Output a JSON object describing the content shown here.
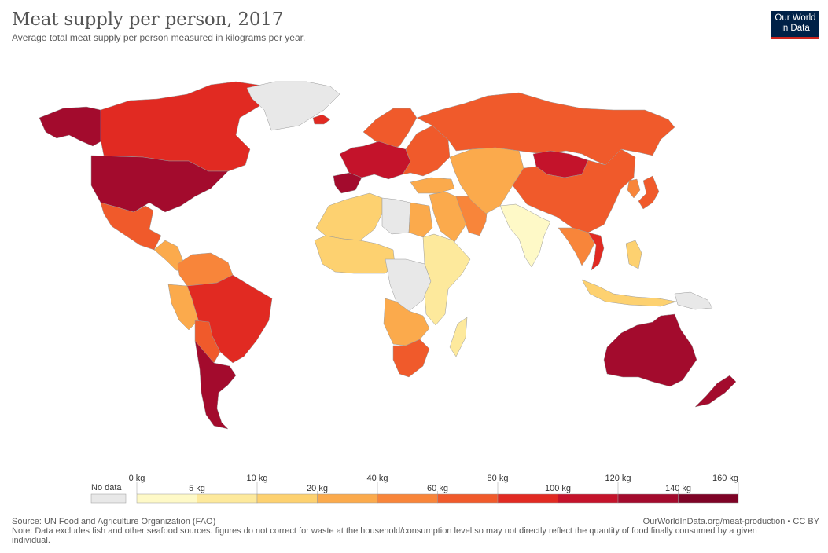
{
  "header": {
    "title": "Meat supply per person, 2017",
    "subtitle": "Average total meat supply per person measured in kilograms per year.",
    "logo_line1": "Our World",
    "logo_line2": "in Data"
  },
  "legend": {
    "no_data_label": "No data",
    "no_data_color": "#e8e8e8",
    "bins": [
      {
        "from": "0 kg",
        "to": "5 kg",
        "color": "#fef9c7"
      },
      {
        "from": "5 kg",
        "to": "10 kg",
        "color": "#fde99c"
      },
      {
        "from": "10 kg",
        "to": "20 kg",
        "color": "#fdd170"
      },
      {
        "from": "20 kg",
        "to": "40 kg",
        "color": "#fbaa4c"
      },
      {
        "from": "40 kg",
        "to": "60 kg",
        "color": "#f8853a"
      },
      {
        "from": "60 kg",
        "to": "80 kg",
        "color": "#f05a2b"
      },
      {
        "from": "80 kg",
        "to": "100 kg",
        "color": "#e12a22"
      },
      {
        "from": "100 kg",
        "to": "120 kg",
        "color": "#c4132b"
      },
      {
        "from": "120 kg",
        "to": "140 kg",
        "color": "#a30b2d"
      },
      {
        "from": "140 kg",
        "to": "160 kg",
        "color": "#7e0326"
      }
    ],
    "tick_labels": [
      "0 kg",
      "5 kg",
      "10 kg",
      "20 kg",
      "40 kg",
      "60 kg",
      "80 kg",
      "100 kg",
      "120 kg",
      "140 kg",
      "160 kg"
    ]
  },
  "footer": {
    "source": "Source: UN Food and Agriculture Organization (FAO)",
    "note": "Note: Data excludes fish and other seafood sources. figures do not correct for waste at the household/consumption level so may not directly reflect the quantity of food finally consumed by a given individual.",
    "url_license": "OurWorldInData.org/meat-production • CC BY"
  },
  "regions": [
    {
      "name": "Alaska",
      "color": "#a30b2d"
    },
    {
      "name": "Canada",
      "color": "#e12a22"
    },
    {
      "name": "Greenland",
      "color": "#e8e8e8"
    },
    {
      "name": "United States",
      "color": "#a30b2d"
    },
    {
      "name": "Mexico",
      "color": "#f05a2b"
    },
    {
      "name": "Central America",
      "color": "#fbaa4c"
    },
    {
      "name": "Colombia & Venezuela",
      "color": "#f8853a"
    },
    {
      "name": "Peru",
      "color": "#fbaa4c"
    },
    {
      "name": "Brazil",
      "color": "#e12a22"
    },
    {
      "name": "Bolivia & Paraguay",
      "color": "#f05a2b"
    },
    {
      "name": "Argentina & Chile",
      "color": "#a30b2d"
    },
    {
      "name": "Iceland",
      "color": "#e12a22"
    },
    {
      "name": "Scandinavia",
      "color": "#f05a2b"
    },
    {
      "name": "Western Europe",
      "color": "#c4132b"
    },
    {
      "name": "Iberia",
      "color": "#a30b2d"
    },
    {
      "name": "Eastern Europe",
      "color": "#f05a2b"
    },
    {
      "name": "Russia",
      "color": "#f05a2b"
    },
    {
      "name": "Turkey",
      "color": "#fbaa4c"
    },
    {
      "name": "Middle East",
      "color": "#fbaa4c"
    },
    {
      "name": "Gulf states",
      "color": "#f8853a"
    },
    {
      "name": "Central Asia",
      "color": "#fbaa4c"
    },
    {
      "name": "Mongolia",
      "color": "#c4132b"
    },
    {
      "name": "China",
      "color": "#f05a2b"
    },
    {
      "name": "Korea",
      "color": "#f8853a"
    },
    {
      "name": "Japan",
      "color": "#f05a2b"
    },
    {
      "name": "India",
      "color": "#fef9c7"
    },
    {
      "name": "Southeast Asia",
      "color": "#f8853a"
    },
    {
      "name": "Vietnam",
      "color": "#e12a22"
    },
    {
      "name": "Indonesia",
      "color": "#fdd170"
    },
    {
      "name": "Philippines",
      "color": "#fdd170"
    },
    {
      "name": "Papua New Guinea",
      "color": "#e8e8e8"
    },
    {
      "name": "North Africa",
      "color": "#fdd170"
    },
    {
      "name": "Libya",
      "color": "#e8e8e8"
    },
    {
      "name": "Egypt",
      "color": "#fbaa4c"
    },
    {
      "name": "West Africa",
      "color": "#fdd170"
    },
    {
      "name": "Central Africa",
      "color": "#e8e8e8"
    },
    {
      "name": "East Africa",
      "color": "#fde99c"
    },
    {
      "name": "Angola & Zambia",
      "color": "#fbaa4c"
    },
    {
      "name": "Madagascar",
      "color": "#fde99c"
    },
    {
      "name": "South Africa",
      "color": "#f05a2b"
    },
    {
      "name": "Australia",
      "color": "#a30b2d"
    },
    {
      "name": "New Zealand",
      "color": "#a30b2d"
    }
  ]
}
